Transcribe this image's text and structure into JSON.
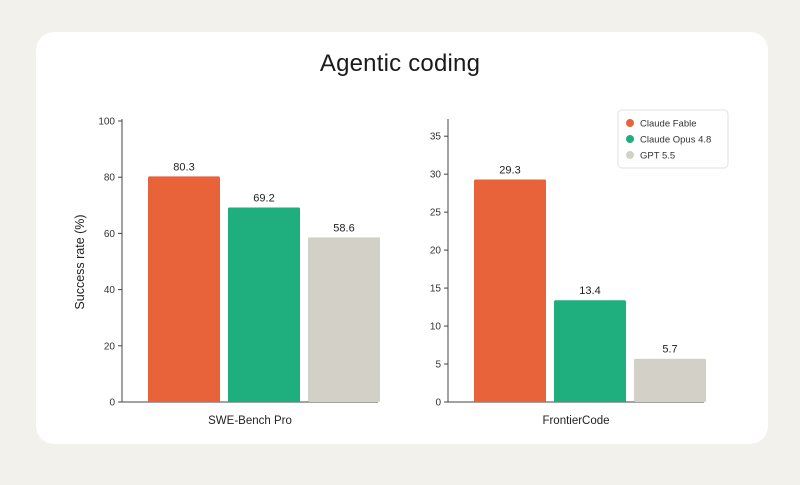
{
  "title": "Agentic coding",
  "colors": {
    "claude_fable": "#e8633a",
    "claude_opus": "#1fae7d",
    "gpt": "#d3d1c7"
  },
  "chart_data": [
    {
      "type": "bar",
      "title": "",
      "categories": [
        "SWE-Bench Pro"
      ],
      "series": [
        {
          "name": "Claude Fable",
          "values": [
            80.3
          ]
        },
        {
          "name": "Claude Opus 4.8",
          "values": [
            69.2
          ]
        },
        {
          "name": "GPT 5.5",
          "values": [
            58.6
          ]
        }
      ],
      "value_labels": [
        "80.3",
        "69.2",
        "58.6"
      ],
      "xlabel": "SWE-Bench Pro",
      "ylabel": "Success rate (%)",
      "ylim": [
        0,
        100
      ],
      "yticks": [
        0,
        20,
        40,
        60,
        80,
        100
      ]
    },
    {
      "type": "bar",
      "title": "",
      "categories": [
        "FrontierCode"
      ],
      "series": [
        {
          "name": "Claude Fable",
          "values": [
            29.3
          ]
        },
        {
          "name": "Claude Opus 4.8",
          "values": [
            13.4
          ]
        },
        {
          "name": "GPT 5.5",
          "values": [
            5.7
          ]
        }
      ],
      "value_labels": [
        "29.3",
        "13.4",
        "5.7"
      ],
      "xlabel": "FrontierCode",
      "ylabel": "",
      "ylim": [
        0,
        37
      ],
      "yticks": [
        0,
        5,
        10,
        15,
        20,
        25,
        30,
        35
      ],
      "legend": "top-right"
    }
  ],
  "legend": [
    "Claude Fable",
    "Claude Opus 4.8",
    "GPT 5.5"
  ]
}
